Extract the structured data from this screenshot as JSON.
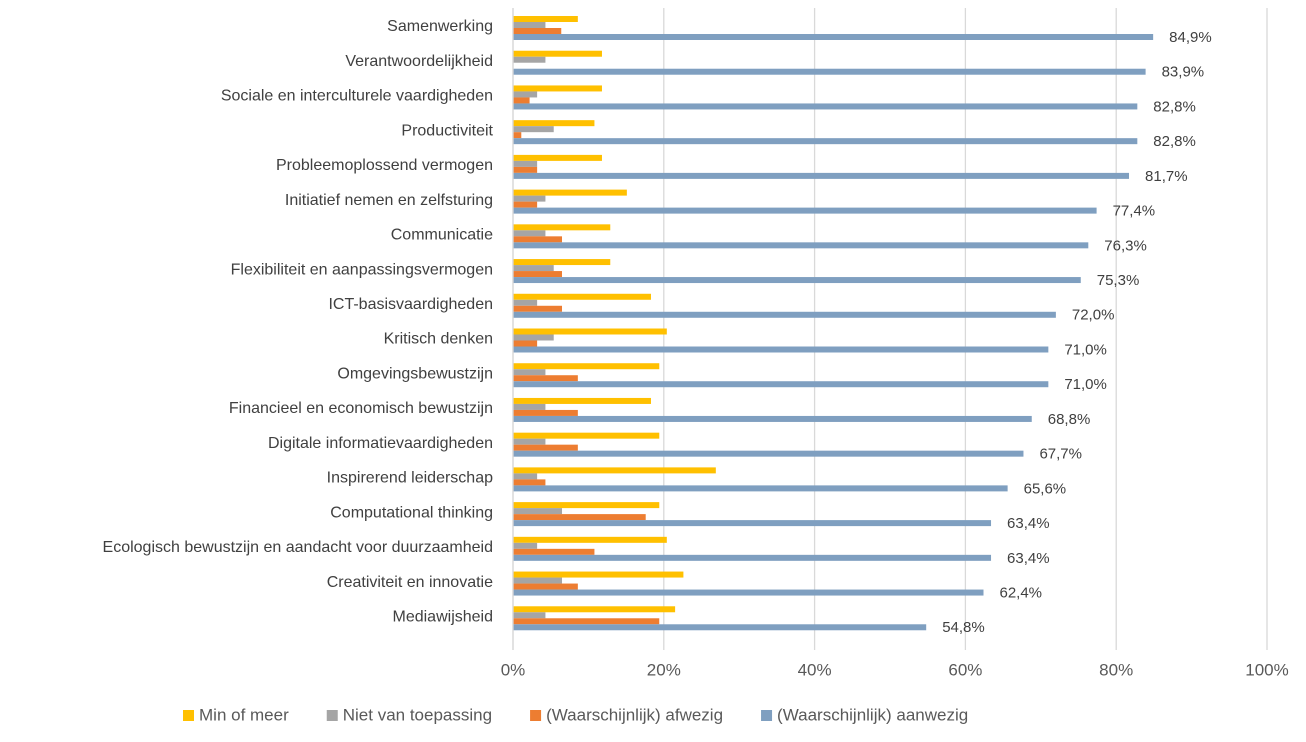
{
  "chart_data": {
    "type": "bar",
    "orientation": "horizontal",
    "categories": [
      "Samenwerking",
      "Verantwoordelijkheid",
      "Sociale en interculturele vaardigheden",
      "Productiviteit",
      "Probleemoplossend vermogen",
      "Initiatief nemen en zelfsturing",
      "Communicatie",
      "Flexibiliteit en aanpassingsvermogen",
      "ICT-basisvaardigheden",
      "Kritisch denken",
      "Omgevingsbewustzijn",
      "Financieel en economisch bewustzijn",
      "Digitale informatievaardigheden",
      "Inspirerend leiderschap",
      "Computational thinking",
      "Ecologisch bewustzijn en aandacht voor duurzaamheid",
      "Creativiteit en innovatie",
      "Mediawijsheid"
    ],
    "series": [
      {
        "name": "Min of meer",
        "color": "#ffc000",
        "values": [
          8.6,
          11.8,
          11.8,
          10.8,
          11.8,
          15.1,
          12.9,
          12.9,
          18.3,
          20.4,
          19.4,
          18.3,
          19.4,
          26.9,
          19.4,
          20.4,
          22.6,
          21.5
        ]
      },
      {
        "name": "Niet van toepassing",
        "color": "#a5a5a5",
        "values": [
          4.3,
          4.3,
          3.2,
          5.4,
          3.2,
          4.3,
          4.3,
          5.4,
          3.2,
          5.4,
          4.3,
          4.3,
          4.3,
          3.2,
          6.5,
          3.2,
          6.5,
          4.3
        ]
      },
      {
        "name": "(Waarschijnlijk) afwezig",
        "color": "#ed7d31",
        "values": [
          6.4,
          0,
          2.2,
          1.1,
          3.2,
          3.2,
          6.5,
          6.5,
          6.5,
          3.2,
          8.6,
          8.6,
          8.6,
          4.3,
          17.6,
          10.8,
          8.6,
          19.4
        ]
      },
      {
        "name": "(Waarschijnlijk) aanwezig",
        "color": "#7f9fc0",
        "values": [
          84.9,
          83.9,
          82.8,
          82.8,
          81.7,
          77.4,
          76.3,
          75.3,
          72.0,
          71.0,
          71.0,
          68.8,
          67.7,
          65.6,
          63.4,
          63.4,
          62.4,
          54.8
        ],
        "value_labels": [
          "84,9%",
          "83,9%",
          "82,8%",
          "82,8%",
          "81,7%",
          "77,4%",
          "76,3%",
          "75,3%",
          "72,0%",
          "71,0%",
          "71,0%",
          "68,8%",
          "67,7%",
          "65,6%",
          "63,4%",
          "63,4%",
          "62,4%",
          "54,8%"
        ]
      }
    ],
    "xlim": [
      0,
      100
    ],
    "xticks": [
      {
        "value": 0,
        "label": "0%"
      },
      {
        "value": 20,
        "label": "20%"
      },
      {
        "value": 40,
        "label": "40%"
      },
      {
        "value": 60,
        "label": "60%"
      },
      {
        "value": 80,
        "label": "80%"
      },
      {
        "value": 100,
        "label": "100%"
      }
    ],
    "grid": true,
    "legend": "bottom"
  }
}
